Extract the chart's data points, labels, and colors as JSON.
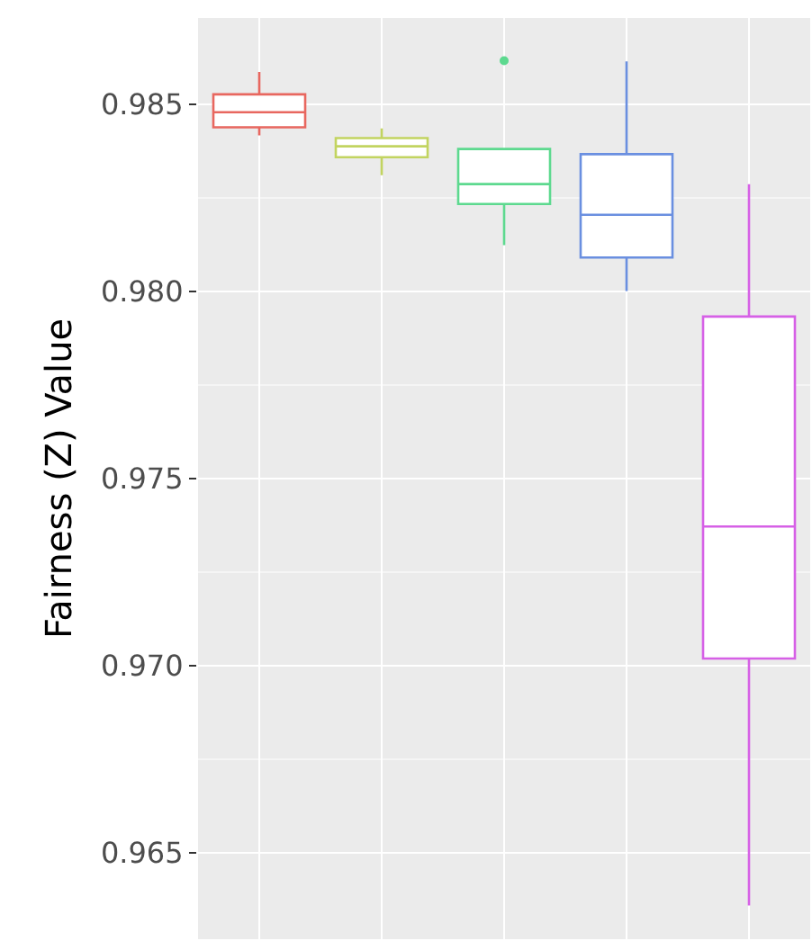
{
  "chart_data": {
    "type": "box",
    "ylabel": "Fairness (Z) Value",
    "categories": [
      null,
      null,
      null,
      null,
      null
    ],
    "colors": [
      "#e8675f",
      "#c2d460",
      "#5dd98f",
      "#6a8fe0",
      "#d660e6"
    ],
    "boxes": [
      {
        "low": 0.98417,
        "q1": 0.98439,
        "median": 0.98479,
        "q3": 0.98527,
        "high": 0.98587
      },
      {
        "low": 0.98311,
        "q1": 0.98359,
        "median": 0.98388,
        "q3": 0.9841,
        "high": 0.98436
      },
      {
        "low": 0.98124,
        "q1": 0.98234,
        "median": 0.98287,
        "q3": 0.98381,
        "high": 0.98381,
        "outliers": [
          0.98617
        ]
      },
      {
        "low": 0.98001,
        "q1": 0.98091,
        "median": 0.98205,
        "q3": 0.98367,
        "high": 0.98615
      },
      {
        "low": 0.96359,
        "q1": 0.97019,
        "median": 0.97372,
        "q3": 0.97933,
        "high": 0.98287
      }
    ],
    "ylim": [
      0.96269,
      0.98731
    ],
    "yticks": [
      {
        "value": 0.965,
        "label": "0.965"
      },
      {
        "value": 0.97,
        "label": "0.970"
      },
      {
        "value": 0.975,
        "label": "0.975"
      },
      {
        "value": 0.98,
        "label": "0.980"
      },
      {
        "value": 0.985,
        "label": "0.985"
      }
    ],
    "grid": true,
    "tick_labels": "y"
  }
}
